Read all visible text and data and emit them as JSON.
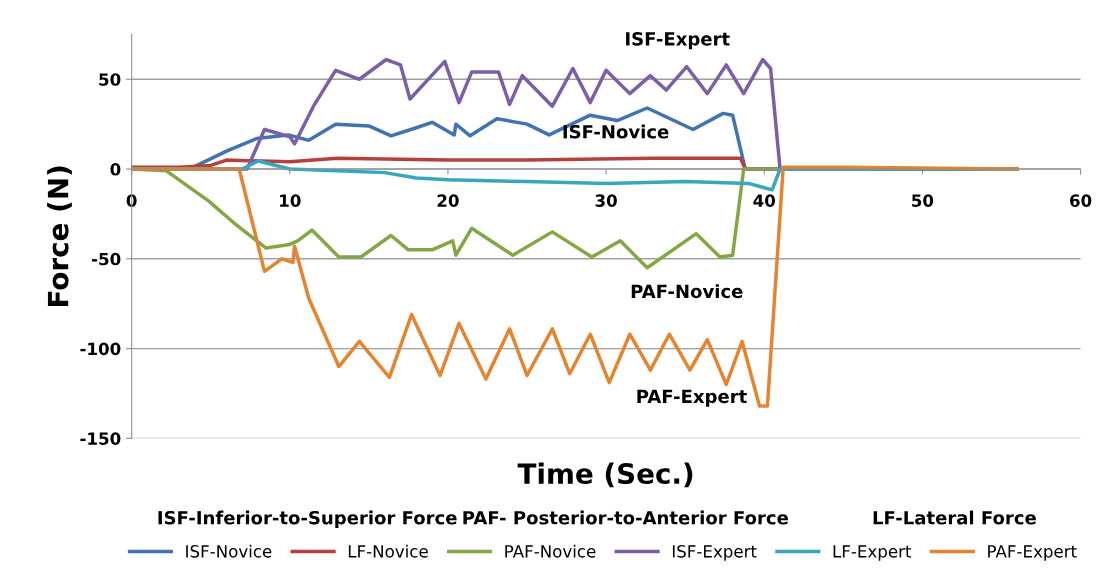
{
  "chart_data": {
    "type": "line",
    "xlabel": "Time (Sec.)",
    "ylabel": "Force (N)",
    "xlim": [
      0,
      60
    ],
    "xticks": [
      0,
      10,
      20,
      30,
      40,
      50,
      60
    ],
    "ylim": [
      -150,
      75
    ],
    "yticks": [
      -150,
      -100,
      -50,
      0,
      50
    ],
    "grid": "y",
    "legend": "bottom",
    "marker": "none",
    "line_style": "solid",
    "series": [
      {
        "name": "ISF-Novice",
        "color": "#3e73b5",
        "x": [
          0,
          3.5,
          4,
          6,
          7.9,
          9.9,
          11.2,
          12.9,
          15,
          16.4,
          18,
          19,
          20.4,
          20.5,
          21.4,
          23.1,
          25,
          26.4,
          29,
          30.7,
          32.6,
          35.5,
          37.4,
          38,
          38.8,
          45,
          56
        ],
        "values": [
          0,
          0,
          1.5,
          10,
          17,
          19,
          16,
          25,
          24,
          18.5,
          23,
          26,
          19,
          25,
          18.5,
          28,
          25,
          19,
          30,
          27,
          34,
          22,
          31,
          30,
          0,
          0,
          0
        ]
      },
      {
        "name": "LF-Novice",
        "color": "#b8403c",
        "x": [
          0,
          3,
          5,
          6,
          10,
          13,
          20,
          25,
          33,
          38.5,
          38.8,
          45,
          56
        ],
        "values": [
          1,
          1,
          2,
          5,
          4,
          6,
          5,
          5,
          6,
          6,
          0,
          0,
          0
        ]
      },
      {
        "name": "PAF-Novice",
        "color": "#82a846",
        "x": [
          0,
          2.2,
          4.9,
          6.6,
          8.5,
          10,
          10.5,
          11.4,
          13.1,
          14.5,
          16.4,
          17.5,
          19,
          20.3,
          20.5,
          21.5,
          24.1,
          26.6,
          29.1,
          30.9,
          32.6,
          35.7,
          37.2,
          38,
          38.7,
          41,
          45,
          56
        ],
        "values": [
          0,
          -1,
          -18,
          -31,
          -44,
          -42,
          -40,
          -34,
          -49,
          -49,
          -37,
          -45,
          -45,
          -40,
          -48,
          -33,
          -48,
          -35,
          -49,
          -40,
          -55,
          -36,
          -49,
          -48,
          0,
          0,
          0,
          0
        ]
      },
      {
        "name": "ISF-Expert",
        "color": "#7b5ea7",
        "x": [
          0,
          7.3,
          8.4,
          10,
          10.3,
          11.5,
          12.9,
          14.4,
          16.1,
          17,
          17.6,
          19.8,
          20.7,
          21.5,
          23.2,
          23.9,
          24.7,
          26.6,
          27.9,
          29,
          30,
          31.5,
          32.8,
          33.8,
          35.1,
          36.4,
          37.6,
          38.7,
          39.9,
          40.4,
          41,
          45,
          56
        ],
        "values": [
          0,
          0,
          22,
          18,
          14,
          35,
          55,
          50,
          61,
          58,
          39,
          60,
          37,
          54,
          54,
          36,
          52,
          35,
          56,
          37,
          55,
          42,
          52,
          44,
          57,
          42,
          58,
          42,
          61,
          56,
          0,
          0,
          0
        ]
      },
      {
        "name": "LF-Expert",
        "color": "#37a6c0",
        "x": [
          0,
          7,
          8,
          10,
          13,
          16,
          18,
          20,
          25,
          30,
          35,
          39,
          40.5,
          41,
          45,
          56
        ],
        "values": [
          0,
          0,
          4.5,
          0,
          -1,
          -2,
          -5,
          -6,
          -7,
          -8,
          -7,
          -8,
          -11.6,
          0,
          0,
          0
        ]
      },
      {
        "name": "PAF-Expert",
        "color": "#e5842f",
        "x": [
          0,
          6.8,
          8.4,
          9.5,
          10.2,
          10.3,
          11.2,
          13.1,
          14.4,
          16.3,
          17.7,
          19.5,
          20.7,
          22.4,
          23.9,
          25,
          26.6,
          27.7,
          29,
          30.2,
          31.5,
          32.8,
          34,
          35.3,
          36.4,
          37.6,
          38.6,
          39.7,
          40.2,
          41.2,
          45,
          56
        ],
        "values": [
          0,
          0,
          -57,
          -50,
          -52,
          -43,
          -72,
          -110,
          -96,
          -116,
          -81,
          -115,
          -86,
          -117,
          -89,
          -115,
          -89,
          -114,
          -92,
          -119,
          -92,
          -112,
          -92,
          -112,
          -95,
          -120,
          -96,
          -132,
          -132,
          1,
          1,
          0
        ]
      }
    ],
    "annotations": [
      "ISF-Expert",
      "ISF-Novice",
      "PAF-Novice",
      "PAF-Expert",
      "ISF-Inferior-to-Superior Force",
      "PAF- Posterior-to-Anterior Force",
      "LF-Lateral Force"
    ]
  }
}
